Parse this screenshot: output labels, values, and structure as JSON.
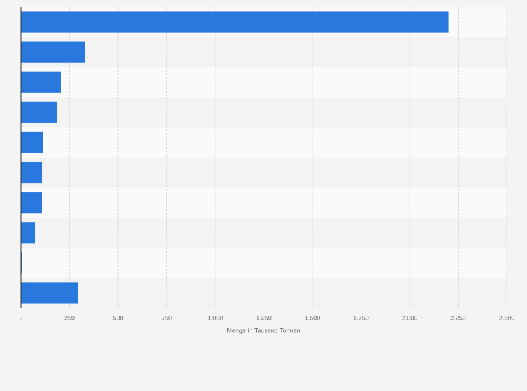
{
  "chart_data": {
    "type": "bar",
    "orientation": "horizontal",
    "x_label": "Menge in Tausend Tonnen",
    "categories": [
      null,
      null,
      null,
      null,
      null,
      null,
      null,
      null,
      null,
      null
    ],
    "values": [
      2200,
      330,
      205,
      187,
      115,
      108,
      108,
      72,
      4,
      295
    ],
    "color": "#2878de",
    "xlim": [
      0,
      2500
    ],
    "xticks": [
      0,
      250,
      500,
      750,
      {
        "value": 1000,
        "label": "1.000"
      },
      {
        "value": 1250,
        "label": "1.250"
      },
      {
        "value": 1500,
        "label": "1.500"
      },
      {
        "value": 1750,
        "label": "1.750"
      },
      {
        "value": 2000,
        "label": "2.000"
      },
      {
        "value": 2250,
        "label": "2.250"
      },
      {
        "value": 2500,
        "label": "2.500"
      }
    ],
    "grid": true
  }
}
